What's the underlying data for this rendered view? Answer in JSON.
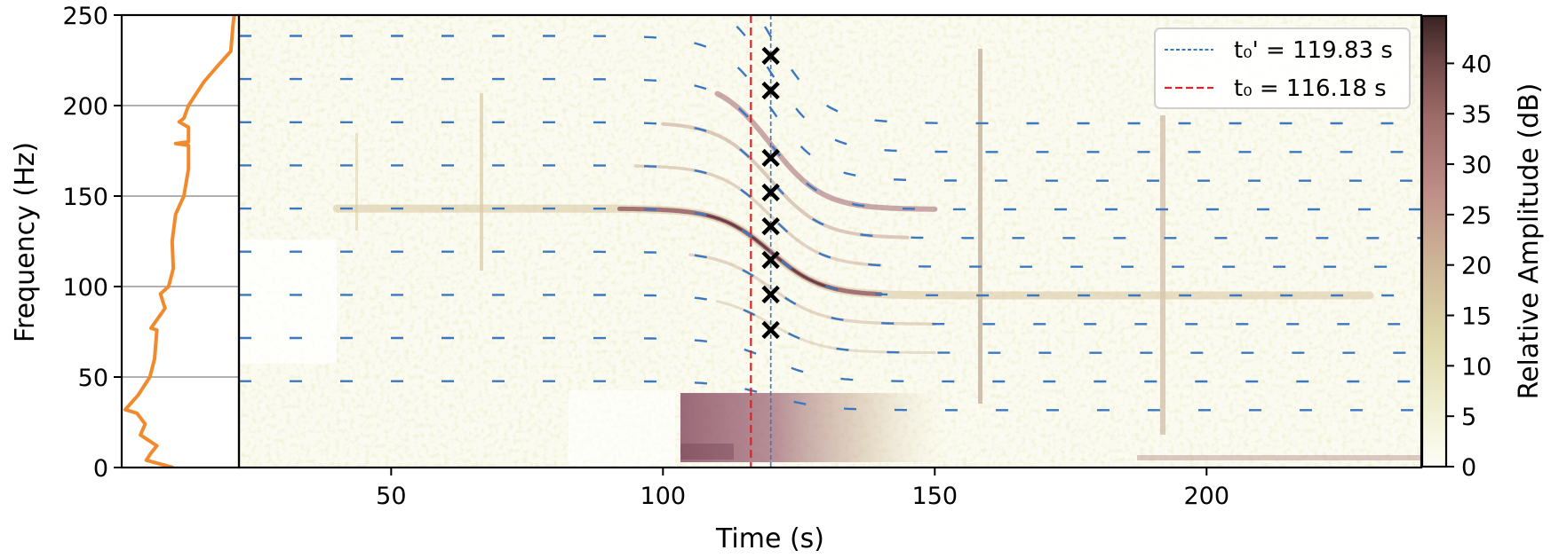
{
  "chart_data": {
    "type": "heatmap",
    "title": "",
    "layout": {
      "panels": [
        "frequency-profile",
        "spectrogram",
        "colorbar"
      ],
      "grid": "horizontal gridlines on profile panel only",
      "legend_position": "upper right of spectrogram"
    },
    "profile_panel": {
      "type": "line",
      "color": "#f08a2c",
      "ylabel": "Frequency (Hz)",
      "ylim": [
        0,
        250
      ],
      "yticks": [
        0,
        50,
        100,
        150,
        200,
        250
      ],
      "gridlines_at": [
        50,
        100,
        150,
        200
      ],
      "xlim": [
        0,
        1
      ],
      "note": "relative spectral level per frequency (x normalized, unlabeled)",
      "points": [
        {
          "f": 250,
          "x": 0.96
        },
        {
          "f": 245,
          "x": 0.95
        },
        {
          "f": 230,
          "x": 0.93
        },
        {
          "f": 222,
          "x": 0.82
        },
        {
          "f": 213,
          "x": 0.7
        },
        {
          "f": 205,
          "x": 0.62
        },
        {
          "f": 200,
          "x": 0.57
        },
        {
          "f": 193,
          "x": 0.53
        },
        {
          "f": 191,
          "x": 0.49
        },
        {
          "f": 188,
          "x": 0.57
        },
        {
          "f": 180,
          "x": 0.57
        },
        {
          "f": 179,
          "x": 0.46
        },
        {
          "f": 178,
          "x": 0.57
        },
        {
          "f": 165,
          "x": 0.57
        },
        {
          "f": 150,
          "x": 0.53
        },
        {
          "f": 140,
          "x": 0.46
        },
        {
          "f": 125,
          "x": 0.43
        },
        {
          "f": 110,
          "x": 0.44
        },
        {
          "f": 100,
          "x": 0.4
        },
        {
          "f": 96,
          "x": 0.33
        },
        {
          "f": 88,
          "x": 0.37
        },
        {
          "f": 77,
          "x": 0.25
        },
        {
          "f": 76,
          "x": 0.3
        },
        {
          "f": 60,
          "x": 0.28
        },
        {
          "f": 50,
          "x": 0.24
        },
        {
          "f": 40,
          "x": 0.14
        },
        {
          "f": 32,
          "x": 0.03
        },
        {
          "f": 30,
          "x": 0.13
        },
        {
          "f": 24,
          "x": 0.2
        },
        {
          "f": 18,
          "x": 0.16
        },
        {
          "f": 12,
          "x": 0.3
        },
        {
          "f": 8,
          "x": 0.25
        },
        {
          "f": 4,
          "x": 0.21
        },
        {
          "f": 0,
          "x": 0.44
        }
      ]
    },
    "spectrogram": {
      "xlabel": "Time (s)",
      "xlim": [
        22,
        239.5
      ],
      "xticks": [
        50,
        100,
        150,
        200
      ],
      "ylim": [
        0,
        250
      ],
      "vertical_lines": [
        {
          "name": "t0_prime",
          "x": 119.83,
          "color": "#3b78c0",
          "style": "dotted-dash",
          "label": "t₀' = 119.83 s"
        },
        {
          "name": "t0",
          "x": 116.18,
          "color": "#d62728",
          "style": "dashed",
          "label": "t₀ = 116.18 s"
        }
      ],
      "markers": {
        "symbol": "x",
        "color": "#000000",
        "x": 119.83,
        "frequencies": [
          227.5,
          208.3,
          171.1,
          152.0,
          133.3,
          114.7,
          95.6,
          76.0
        ]
      },
      "model_harmonics_dashed_blue": {
        "color": "#3b78c0",
        "approach_frequencies": [
          214,
          190,
          166,
          143,
          120,
          96
        ],
        "recede_frequencies": [
          189,
          174,
          143,
          126,
          111,
          95,
          79,
          63
        ]
      },
      "features": [
        {
          "type": "observed-harmonic",
          "pre_freq": 143,
          "post_freq": 97,
          "note": "strongest tonal line"
        },
        {
          "type": "broadband-block",
          "t_start": 103.3,
          "t_end": 150,
          "f_range": [
            0,
            40
          ]
        },
        {
          "type": "transient-streak",
          "t": 158
        },
        {
          "type": "transient-streak",
          "t": 192
        }
      ]
    },
    "colorbar": {
      "label": "Relative Amplitude (dB)",
      "range": [
        0,
        44.7
      ],
      "ticks": [
        0,
        5,
        10,
        15,
        20,
        25,
        30,
        35,
        40
      ],
      "colormap": [
        "#fdfdf8",
        "#eeeec9",
        "#dcd5a4",
        "#cbb391",
        "#bc8d86",
        "#a56e6e",
        "#7d5554",
        "#3c2526"
      ]
    }
  },
  "legend": {
    "entries": [
      {
        "label": "t₀' = 119.83 s",
        "color": "#3b78c0"
      },
      {
        "label": "t₀ = 116.18 s",
        "color": "#d62728"
      }
    ]
  },
  "axes": {
    "y_label": "Frequency (Hz)",
    "x_label": "Time (s)",
    "colorbar_label": "Relative Amplitude (dB)",
    "y_ticks": [
      "0",
      "50",
      "100",
      "150",
      "200",
      "250"
    ],
    "x_ticks": [
      "50",
      "100",
      "150",
      "200"
    ],
    "cbar_ticks": [
      "0",
      "5",
      "10",
      "15",
      "20",
      "25",
      "30",
      "35",
      "40"
    ]
  }
}
